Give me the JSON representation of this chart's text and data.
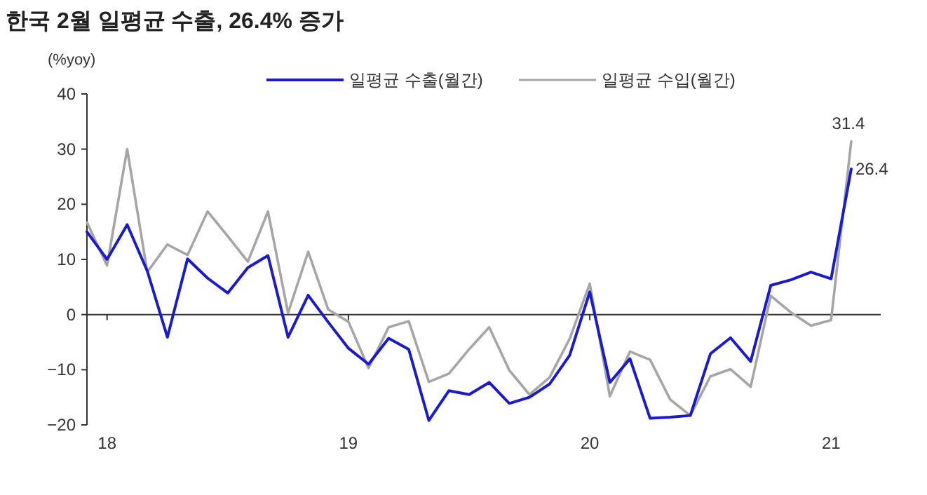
{
  "chart_data": {
    "type": "line",
    "title": "한국 2월 일평균 수출, 26.4% 증가",
    "ylabel": "(%yoy)",
    "x": [
      "2017-12",
      "2018-01",
      "2018-02",
      "2018-03",
      "2018-04",
      "2018-05",
      "2018-06",
      "2018-07",
      "2018-08",
      "2018-09",
      "2018-10",
      "2018-11",
      "2018-12",
      "2019-01",
      "2019-02",
      "2019-03",
      "2019-04",
      "2019-05",
      "2019-06",
      "2019-07",
      "2019-08",
      "2019-09",
      "2019-10",
      "2019-11",
      "2019-12",
      "2020-01",
      "2020-02",
      "2020-03",
      "2020-04",
      "2020-05",
      "2020-06",
      "2020-07",
      "2020-08",
      "2020-09",
      "2020-10",
      "2020-11",
      "2020-12",
      "2021-01",
      "2021-02"
    ],
    "series": [
      {
        "name": "일평균 수출(월간)",
        "color": "#1a1ad6",
        "values": [
          15,
          10,
          16.3,
          7.9,
          -4.1,
          10.1,
          6.6,
          3.9,
          8.5,
          10.7,
          -4.1,
          3.5,
          -1.4,
          -6.1,
          -9,
          -4.3,
          -6.3,
          -19.2,
          -13.8,
          -14.5,
          -12.3,
          -16.1,
          -15,
          -12.6,
          -7.4,
          4.1,
          -12.3,
          -8,
          -18.8,
          -18.6,
          -18.3,
          -7.1,
          -4.2,
          -8.5,
          5.3,
          6.3,
          7.7,
          6.5,
          26.4
        ],
        "value_labels": [
          null,
          null,
          null,
          null,
          null,
          null,
          null,
          null,
          null,
          null,
          null,
          null,
          null,
          null,
          null,
          null,
          null,
          null,
          null,
          null,
          null,
          null,
          null,
          null,
          null,
          null,
          null,
          null,
          null,
          null,
          null,
          null,
          null,
          null,
          null,
          null,
          null,
          null,
          "26.4"
        ]
      },
      {
        "name": "일평균 수입(월간)",
        "color": "#a6a6a6",
        "values": [
          16.7,
          8.9,
          30,
          7.7,
          12.7,
          10.8,
          18.7,
          14.2,
          9.6,
          18.7,
          0.3,
          11.4,
          0.9,
          -1.3,
          -9.7,
          -2.3,
          -1.2,
          -12.2,
          -10.7,
          -6.3,
          -2.3,
          -10.1,
          -14.5,
          -11.4,
          -4.4,
          5.6,
          -14.8,
          -6.7,
          -8.2,
          -15.4,
          -18.3,
          -11.2,
          -9.9,
          -13.1,
          3.4,
          0.4,
          -2,
          -1,
          31.4
        ],
        "value_labels": [
          null,
          null,
          null,
          null,
          null,
          null,
          null,
          null,
          null,
          null,
          null,
          null,
          null,
          null,
          null,
          null,
          null,
          null,
          null,
          null,
          null,
          null,
          null,
          null,
          null,
          null,
          null,
          null,
          null,
          null,
          null,
          null,
          null,
          null,
          null,
          null,
          null,
          null,
          "31.4"
        ]
      }
    ],
    "xlim": [
      "2017-12",
      "2021-03-15"
    ],
    "xticks": [
      {
        "value": "2018-01",
        "label": "18"
      },
      {
        "value": "2019-01",
        "label": "19"
      },
      {
        "value": "2020-01",
        "label": "20"
      },
      {
        "value": "2021-01",
        "label": "21"
      }
    ],
    "ylim": [
      -20,
      40
    ],
    "yticks": [
      -20,
      -10,
      0,
      10,
      20,
      30,
      40
    ],
    "legend": "top",
    "marker": "none",
    "line_style": "solid"
  }
}
